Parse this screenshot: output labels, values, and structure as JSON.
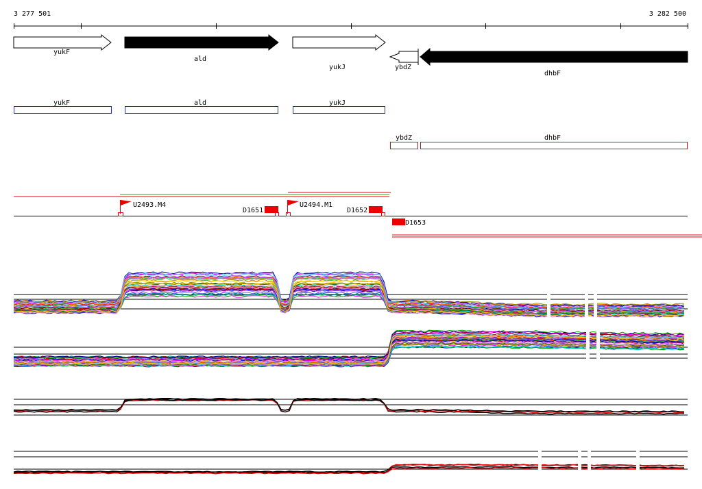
{
  "ruler": {
    "start_label": "3 277 501",
    "end_label": "3 282 500"
  },
  "genes": [
    {
      "name": "yukF",
      "strand": "+",
      "style": "open"
    },
    {
      "name": "ald",
      "strand": "+",
      "style": "filled"
    },
    {
      "name": "yukJ",
      "strand": "+",
      "style": "open"
    },
    {
      "name": "ybdZ",
      "strand": "-",
      "style": "open"
    },
    {
      "name": "dhbF",
      "strand": "-",
      "style": "filled"
    }
  ],
  "annotations_blue": [
    "yukF",
    "ald",
    "yukJ"
  ],
  "annotations_red": [
    "ybdZ",
    "dhbF"
  ],
  "features": [
    {
      "label": "U2493.M4",
      "kind": "promoter-flag"
    },
    {
      "label": "D1651",
      "kind": "terminator-box"
    },
    {
      "label": "U2494.M1",
      "kind": "promoter-flag"
    },
    {
      "label": "D1652",
      "kind": "terminator-box"
    },
    {
      "label": "D1653",
      "kind": "terminator-box"
    }
  ],
  "colors": {
    "gene_filled": "#000000",
    "gene_open": "#ffffff",
    "annotation_blue": "#1f2fb0",
    "annotation_red": "#d01010",
    "feature_red": "#ee0000",
    "transcript_green": "#22aa22"
  },
  "expression_panels": [
    {
      "id": "panel-1",
      "type": "multi-condition profiles",
      "trend": "high over ald and yukJ, low over ybdZ/dhbF"
    },
    {
      "id": "panel-2",
      "type": "multi-condition profiles",
      "trend": "low over yukF–yukJ, high over ybdZ/dhbF"
    },
    {
      "id": "panel-3",
      "type": "summary profiles (red/black)",
      "trend": "high over ald, declining afterwards"
    },
    {
      "id": "panel-4",
      "type": "summary profiles (red/black)",
      "trend": "low over yukF–yukJ, raised over ybdZ/dhbF"
    }
  ]
}
